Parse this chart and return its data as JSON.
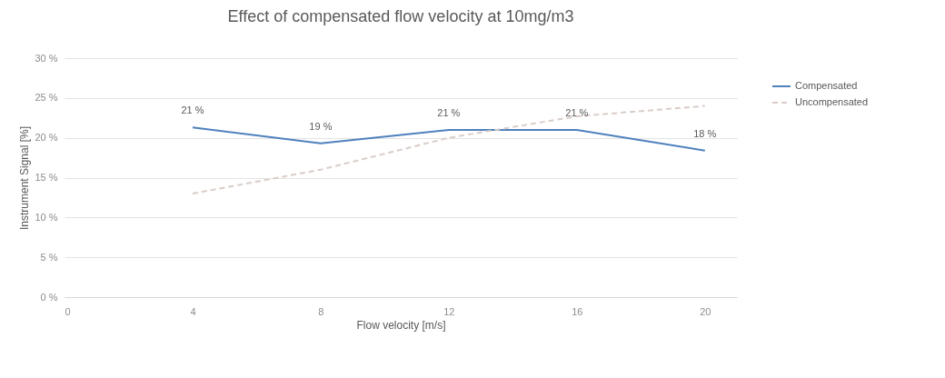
{
  "chart_data": {
    "type": "line",
    "title": "Effect of compensated flow velocity at 10mg/m3",
    "xlabel": "Flow velocity [m/s]",
    "ylabel": "Instrument Signal [%]",
    "x": [
      4,
      8,
      12,
      16,
      20
    ],
    "series": [
      {
        "name": "Compensated",
        "color": "#4f81bd",
        "line_style": "solid",
        "values": [
          21.3,
          19.3,
          21.0,
          21.0,
          18.4
        ],
        "value_labels": [
          "21 %",
          "19 %",
          "21 %",
          "21 %",
          "18 %"
        ]
      },
      {
        "name": "Uncompensated",
        "color": "#d9cdc8",
        "line_style": "dashed",
        "values": [
          13,
          16,
          20,
          22.7,
          24
        ]
      }
    ],
    "xlim": [
      0,
      21
    ],
    "xticks": [
      0,
      4,
      8,
      12,
      16,
      20
    ],
    "ylim": [
      0,
      30
    ],
    "yticks": [
      {
        "value": 0,
        "label": "0 %"
      },
      {
        "value": 5,
        "label": "5 %"
      },
      {
        "value": 10,
        "label": "10 %"
      },
      {
        "value": 15,
        "label": "15 %"
      },
      {
        "value": 20,
        "label": "20 %"
      },
      {
        "value": 25,
        "label": "25 %"
      },
      {
        "value": 30,
        "label": "30 %"
      }
    ],
    "grid": "y",
    "legend": "right"
  }
}
